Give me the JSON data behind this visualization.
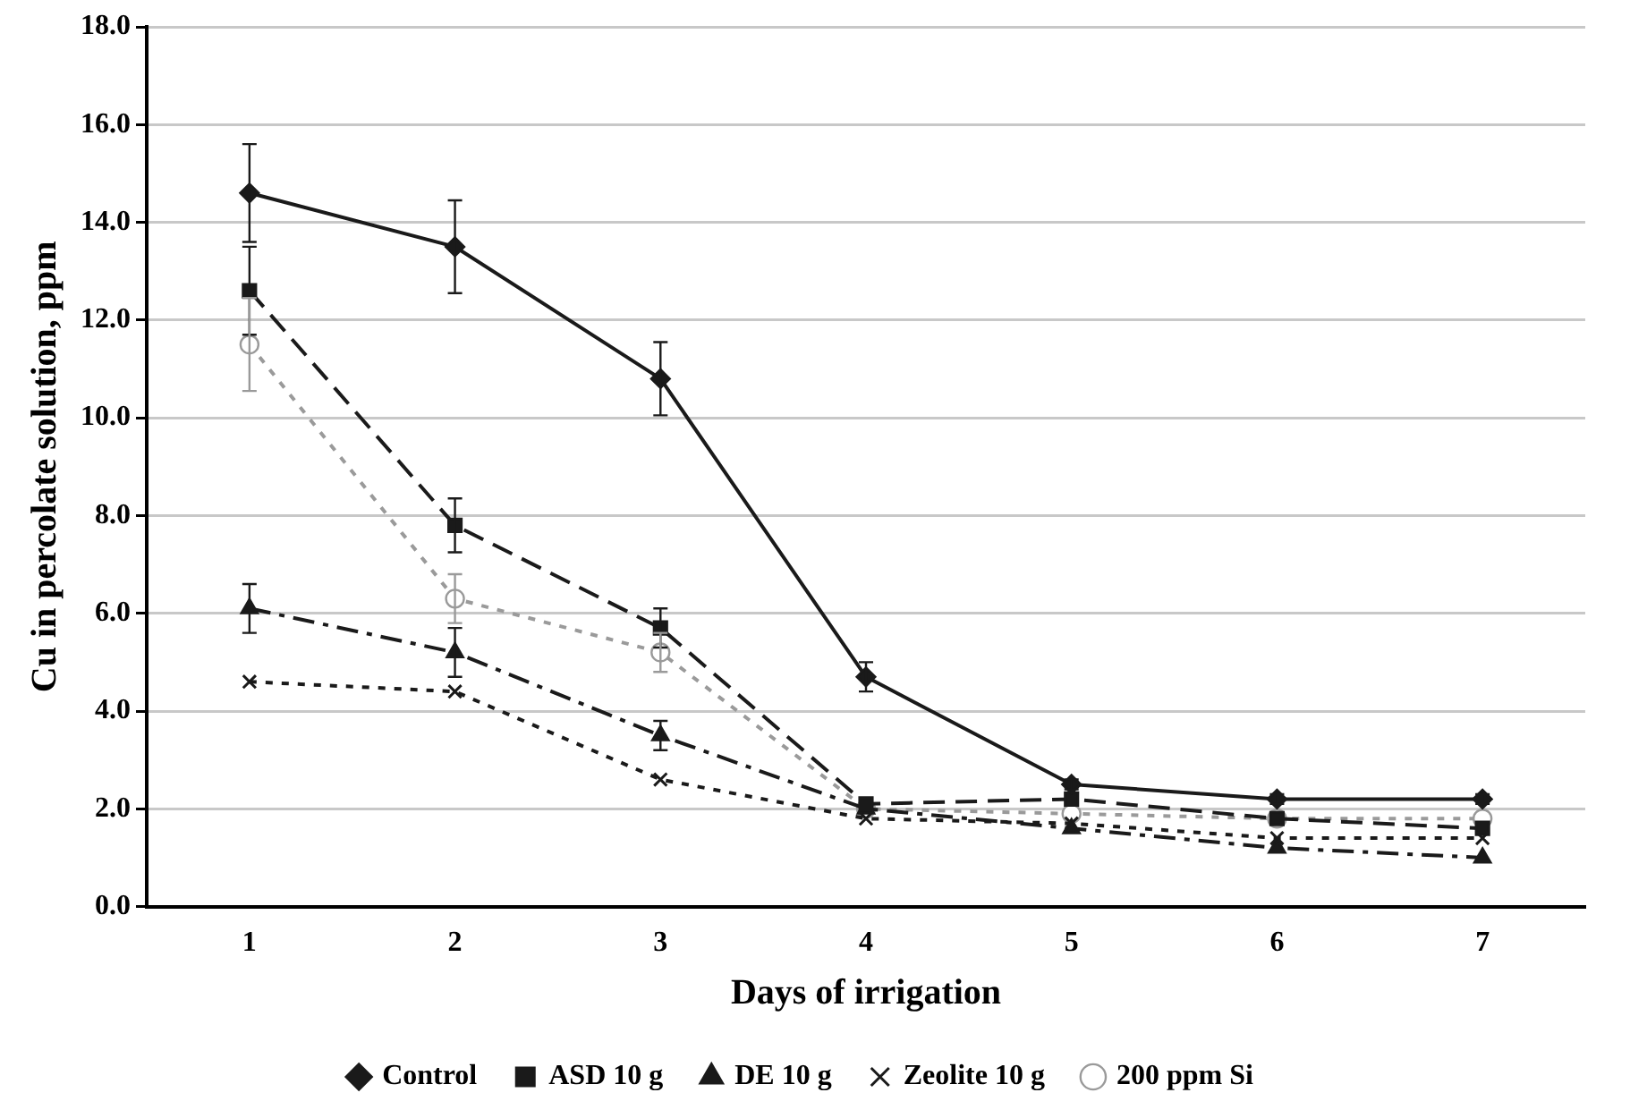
{
  "chart_data": {
    "type": "line",
    "xlabel": "Days of irrigation",
    "ylabel": "Cu in percolate solution, ppm",
    "categories": [
      "1",
      "2",
      "3",
      "4",
      "5",
      "6",
      "7"
    ],
    "ylim": [
      0,
      18
    ],
    "yticks": [
      {
        "value": 0,
        "label": "0.0"
      },
      {
        "value": 2,
        "label": "2.0"
      },
      {
        "value": 4,
        "label": "4.0"
      },
      {
        "value": 6,
        "label": "6.0"
      },
      {
        "value": 8,
        "label": "8.0"
      },
      {
        "value": 10,
        "label": "10.0"
      },
      {
        "value": 12,
        "label": "12.0"
      },
      {
        "value": 14,
        "label": "14.0"
      },
      {
        "value": 16,
        "label": "16.0"
      },
      {
        "value": 18,
        "label": "18.0"
      }
    ],
    "grid": "y",
    "legend": "bottom",
    "series": [
      {
        "name": "Control",
        "color": "#1a1a1a",
        "marker": "diamond",
        "line_style": "solid",
        "values": [
          14.6,
          13.5,
          10.8,
          4.7,
          2.5,
          2.2,
          2.2
        ],
        "errors": [
          1.0,
          0.95,
          0.75,
          0.3,
          0.1,
          0.1,
          0.1
        ]
      },
      {
        "name": "ASD 10 g",
        "color": "#1a1a1a",
        "marker": "square",
        "line_style": "dashed",
        "values": [
          12.6,
          7.8,
          5.7,
          2.1,
          2.2,
          1.8,
          1.6
        ],
        "errors": [
          0.9,
          0.55,
          0.4,
          null,
          null,
          null,
          null
        ]
      },
      {
        "name": "DE 10 g",
        "color": "#1a1a1a",
        "marker": "triangle",
        "line_style": "dashdot",
        "values": [
          6.1,
          5.2,
          3.5,
          2.0,
          1.6,
          1.2,
          1.0
        ],
        "errors": [
          0.5,
          0.5,
          0.3,
          null,
          null,
          null,
          null
        ]
      },
      {
        "name": "Zeolite 10 g",
        "color": "#1a1a1a",
        "marker": "cross",
        "line_style": "dotted",
        "values": [
          4.6,
          4.4,
          2.6,
          1.8,
          1.7,
          1.4,
          1.4
        ]
      },
      {
        "name": "200 ppm Si",
        "color": "#9a9a9a",
        "marker": "circle",
        "line_style": "dotted",
        "values": [
          11.5,
          6.3,
          5.2,
          2.0,
          1.9,
          1.8,
          1.8
        ],
        "errors": [
          0.95,
          0.5,
          0.4,
          null,
          null,
          null,
          null
        ]
      }
    ]
  }
}
